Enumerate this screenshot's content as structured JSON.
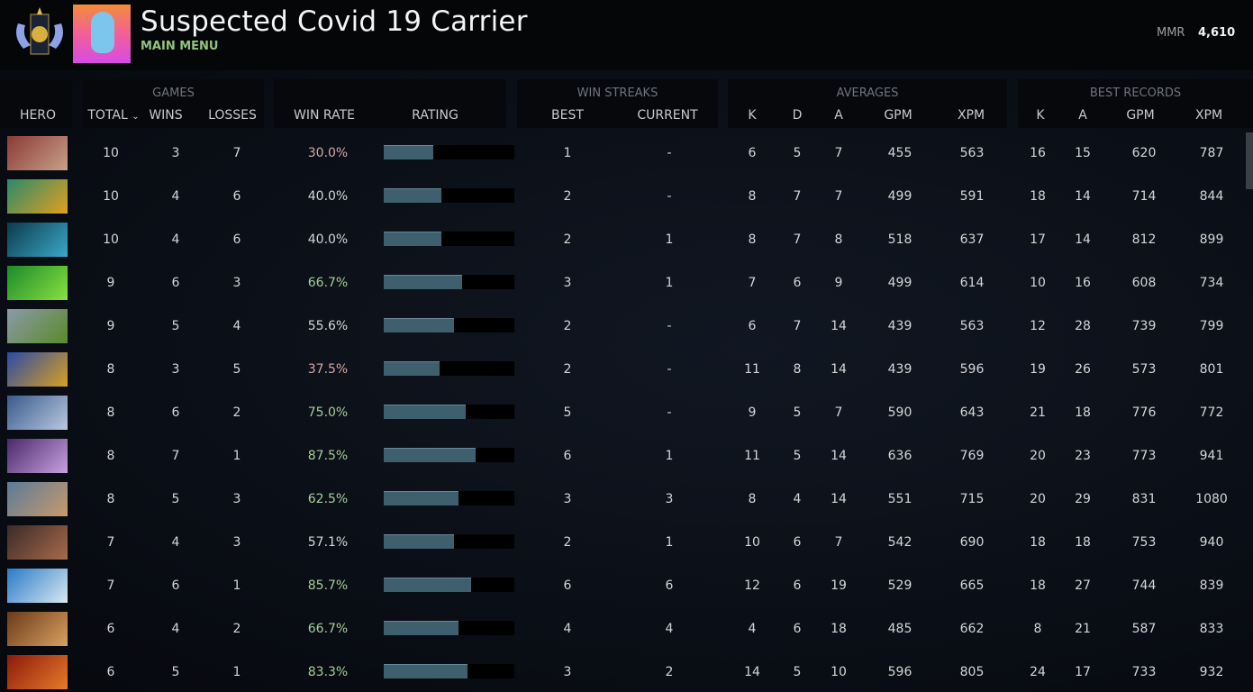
{
  "header": {
    "title": "Suspected Covid 19 Carrier",
    "subtitle": "MAIN MENU",
    "mmr_label": "MMR",
    "mmr_value": "4,610"
  },
  "groups": {
    "games": "GAMES",
    "win_streaks": "WIN STREAKS",
    "averages": "AVERAGES",
    "best_records": "BEST RECORDS"
  },
  "columns": {
    "hero": "HERO",
    "total": "TOTAL",
    "wins": "WINS",
    "losses": "LOSSES",
    "win_rate": "WIN RATE",
    "rating": "RATING",
    "best": "BEST",
    "current": "CURRENT",
    "k": "K",
    "d": "D",
    "a": "A",
    "gpm": "GPM",
    "xpm": "XPM",
    "best_k": "K",
    "best_a": "A",
    "best_gpm": "GPM",
    "best_xpm": "XPM"
  },
  "sort": {
    "column": "total",
    "direction": "descending",
    "icon": "chevron-down-icon"
  },
  "win_rate_colors": {
    "low": "#d4a9a4",
    "mid": "#d4d6d8",
    "high": "#a6cf98"
  },
  "rows": [
    {
      "portrait": [
        "#8a3a34",
        "#c9a08a"
      ],
      "total": "10",
      "wins": "3",
      "losses": "7",
      "win_rate": "30.0%",
      "tone": "low",
      "rating": 0.38,
      "best": "1",
      "current": "-",
      "k": "6",
      "d": "5",
      "a": "7",
      "gpm": "455",
      "xpm": "563",
      "bk": "16",
      "ba": "15",
      "bgpm": "620",
      "bxpm": "787"
    },
    {
      "portrait": [
        "#2a8a6a",
        "#e0a020"
      ],
      "total": "10",
      "wins": "4",
      "losses": "6",
      "win_rate": "40.0%",
      "tone": "mid",
      "rating": 0.44,
      "best": "2",
      "current": "-",
      "k": "8",
      "d": "7",
      "a": "7",
      "gpm": "499",
      "xpm": "591",
      "bk": "18",
      "ba": "14",
      "bgpm": "714",
      "bxpm": "844"
    },
    {
      "portrait": [
        "#0c3a4a",
        "#3aa8c8"
      ],
      "total": "10",
      "wins": "4",
      "losses": "6",
      "win_rate": "40.0%",
      "tone": "mid",
      "rating": 0.44,
      "best": "2",
      "current": "1",
      "k": "8",
      "d": "7",
      "a": "8",
      "gpm": "518",
      "xpm": "637",
      "bk": "17",
      "ba": "14",
      "bgpm": "812",
      "bxpm": "899"
    },
    {
      "portrait": [
        "#1a8a2a",
        "#8ae040"
      ],
      "total": "9",
      "wins": "6",
      "losses": "3",
      "win_rate": "66.7%",
      "tone": "high",
      "rating": 0.6,
      "best": "3",
      "current": "1",
      "k": "7",
      "d": "6",
      "a": "9",
      "gpm": "499",
      "xpm": "614",
      "bk": "10",
      "ba": "16",
      "bgpm": "608",
      "bxpm": "734"
    },
    {
      "portrait": [
        "#8a9aa8",
        "#5a8a2a"
      ],
      "total": "9",
      "wins": "5",
      "losses": "4",
      "win_rate": "55.6%",
      "tone": "mid",
      "rating": 0.54,
      "best": "2",
      "current": "-",
      "k": "6",
      "d": "7",
      "a": "14",
      "gpm": "439",
      "xpm": "563",
      "bk": "12",
      "ba": "28",
      "bgpm": "739",
      "bxpm": "799"
    },
    {
      "portrait": [
        "#2a4aa8",
        "#d8a020"
      ],
      "total": "8",
      "wins": "3",
      "losses": "5",
      "win_rate": "37.5%",
      "tone": "low",
      "rating": 0.43,
      "best": "2",
      "current": "-",
      "k": "11",
      "d": "8",
      "a": "14",
      "gpm": "439",
      "xpm": "596",
      "bk": "19",
      "ba": "26",
      "bgpm": "573",
      "bxpm": "801"
    },
    {
      "portrait": [
        "#3a5a8a",
        "#b8c8e0"
      ],
      "total": "8",
      "wins": "6",
      "losses": "2",
      "win_rate": "75.0%",
      "tone": "high",
      "rating": 0.63,
      "best": "5",
      "current": "-",
      "k": "9",
      "d": "5",
      "a": "7",
      "gpm": "590",
      "xpm": "643",
      "bk": "21",
      "ba": "18",
      "bgpm": "776",
      "bxpm": "772"
    },
    {
      "portrait": [
        "#4a2a6a",
        "#c8a0e0"
      ],
      "total": "8",
      "wins": "7",
      "losses": "1",
      "win_rate": "87.5%",
      "tone": "high",
      "rating": 0.7,
      "best": "6",
      "current": "1",
      "k": "11",
      "d": "5",
      "a": "14",
      "gpm": "636",
      "xpm": "769",
      "bk": "20",
      "ba": "23",
      "bgpm": "773",
      "bxpm": "941"
    },
    {
      "portrait": [
        "#5a7a9a",
        "#c89a6a"
      ],
      "total": "8",
      "wins": "5",
      "losses": "3",
      "win_rate": "62.5%",
      "tone": "high",
      "rating": 0.57,
      "best": "3",
      "current": "3",
      "k": "8",
      "d": "4",
      "a": "14",
      "gpm": "551",
      "xpm": "715",
      "bk": "20",
      "ba": "29",
      "bgpm": "831",
      "bxpm": "1080"
    },
    {
      "portrait": [
        "#3a2a2a",
        "#a86a4a"
      ],
      "total": "7",
      "wins": "4",
      "losses": "3",
      "win_rate": "57.1%",
      "tone": "mid",
      "rating": 0.54,
      "best": "2",
      "current": "1",
      "k": "10",
      "d": "6",
      "a": "7",
      "gpm": "542",
      "xpm": "690",
      "bk": "18",
      "ba": "18",
      "bgpm": "753",
      "bxpm": "940"
    },
    {
      "portrait": [
        "#2a7ac8",
        "#d8e8f0"
      ],
      "total": "7",
      "wins": "6",
      "losses": "1",
      "win_rate": "85.7%",
      "tone": "high",
      "rating": 0.67,
      "best": "6",
      "current": "6",
      "k": "12",
      "d": "6",
      "a": "19",
      "gpm": "529",
      "xpm": "665",
      "bk": "18",
      "ba": "27",
      "bgpm": "744",
      "bxpm": "839"
    },
    {
      "portrait": [
        "#6a3a1a",
        "#d8a060"
      ],
      "total": "6",
      "wins": "4",
      "losses": "2",
      "win_rate": "66.7%",
      "tone": "high",
      "rating": 0.57,
      "best": "4",
      "current": "4",
      "k": "4",
      "d": "6",
      "a": "18",
      "gpm": "485",
      "xpm": "662",
      "bk": "8",
      "ba": "21",
      "bgpm": "587",
      "bxpm": "833"
    },
    {
      "portrait": [
        "#8a1a0a",
        "#e87a2a"
      ],
      "total": "6",
      "wins": "5",
      "losses": "1",
      "win_rate": "83.3%",
      "tone": "high",
      "rating": 0.64,
      "best": "3",
      "current": "2",
      "k": "14",
      "d": "5",
      "a": "10",
      "gpm": "596",
      "xpm": "805",
      "bk": "24",
      "ba": "17",
      "bgpm": "733",
      "bxpm": "932"
    }
  ]
}
